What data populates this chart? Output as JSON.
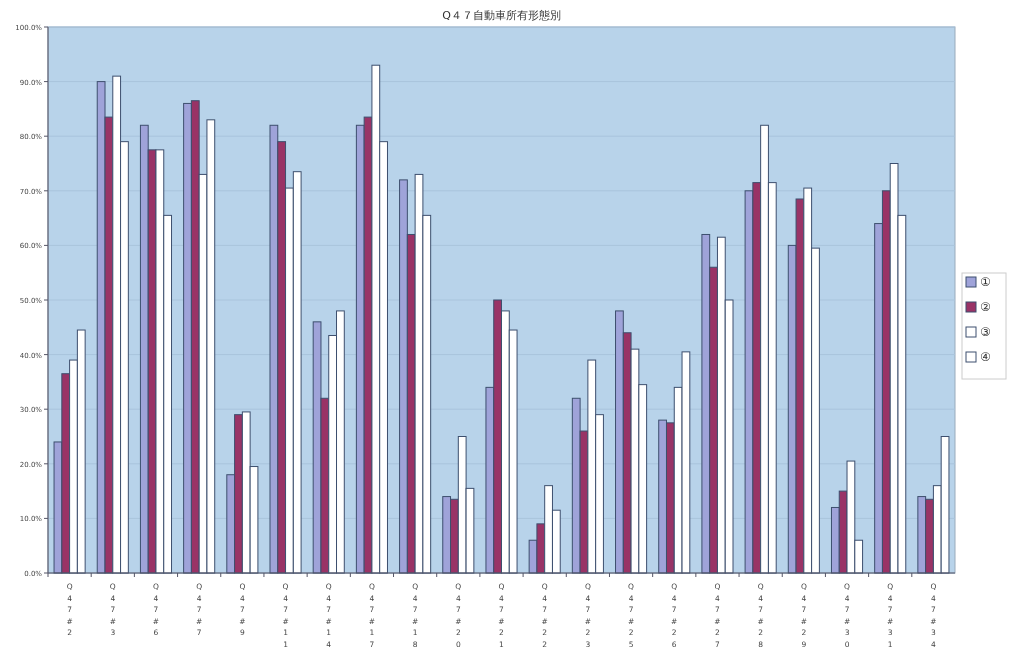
{
  "chart_data": {
    "type": "bar",
    "title": "Q４７自動車所有形態別",
    "categories": [
      "Q47#2",
      "Q47#3",
      "Q47#6",
      "Q47#7",
      "Q47#9",
      "Q47#11",
      "Q47#14",
      "Q47#17",
      "Q47#18",
      "Q47#20",
      "Q47#21",
      "Q47#22",
      "Q47#23",
      "Q47#25",
      "Q47#26",
      "Q47#27",
      "Q47#28",
      "Q47#29",
      "Q47#30",
      "Q47#31",
      "Q47#34"
    ],
    "series": [
      {
        "name": "①",
        "color": "#9fa3d9",
        "values": [
          24,
          90,
          82,
          86,
          18,
          82,
          46,
          82,
          72,
          14,
          34,
          6,
          32,
          48,
          28,
          62,
          70,
          60,
          12,
          64,
          14
        ]
      },
      {
        "name": "②",
        "color": "#993366",
        "values": [
          36.5,
          83.5,
          77.5,
          86.5,
          29,
          79,
          32,
          83.5,
          62,
          13.5,
          50,
          9,
          26,
          44,
          27.5,
          56,
          71.5,
          68.5,
          15,
          70,
          13.5
        ]
      },
      {
        "name": "③",
        "color": "#ffffff",
        "values": [
          39,
          91,
          77.5,
          73,
          29.5,
          70.5,
          43.5,
          93,
          73,
          25,
          48,
          16,
          39,
          41,
          34,
          61.5,
          82,
          70.5,
          20.5,
          75,
          16
        ]
      },
      {
        "name": "④",
        "color": "#ffffff",
        "values": [
          44.5,
          79,
          65.5,
          83,
          19.5,
          73.5,
          48,
          79,
          65.5,
          15.5,
          44.5,
          11.5,
          29,
          34.5,
          40.5,
          50,
          71.5,
          59.5,
          6,
          65.5,
          25
        ]
      }
    ],
    "ylim": [
      0,
      100
    ],
    "yticks": [
      {
        "value": 0,
        "label": "0.0%"
      },
      {
        "value": 10,
        "label": "10.0%"
      },
      {
        "value": 20,
        "label": "20.0%"
      },
      {
        "value": 30,
        "label": "30.0%"
      },
      {
        "value": 40,
        "label": "40.0%"
      },
      {
        "value": 50,
        "label": "50.0%"
      },
      {
        "value": 60,
        "label": "60.0%"
      },
      {
        "value": 70,
        "label": "70.0%"
      },
      {
        "value": 80,
        "label": "80.0%"
      },
      {
        "value": 90,
        "label": "90.0%"
      },
      {
        "value": 100,
        "label": "100.0%"
      }
    ],
    "grid": "y",
    "legend": "right"
  }
}
